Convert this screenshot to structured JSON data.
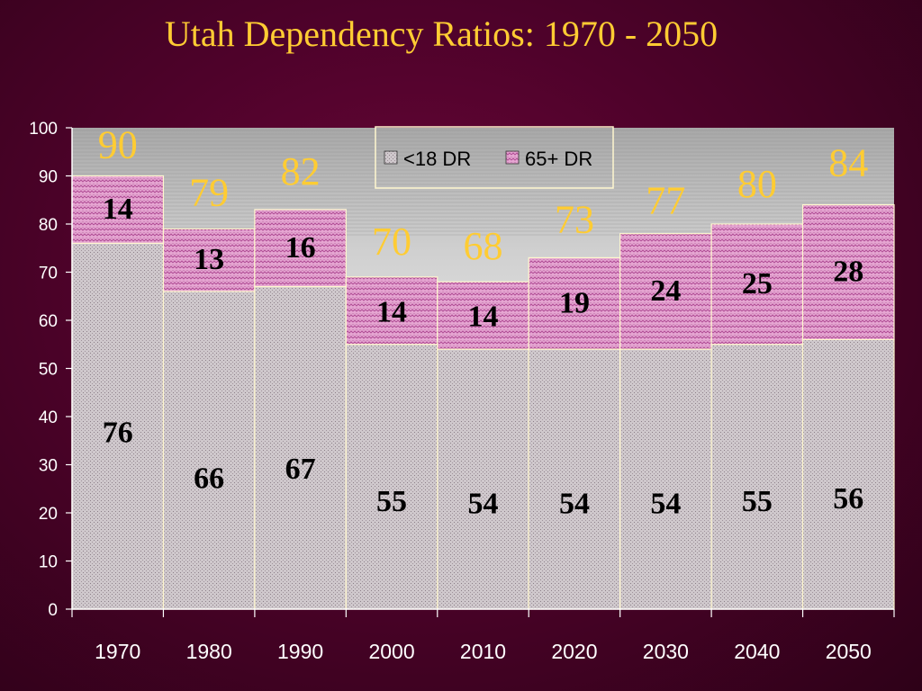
{
  "title": "Utah Dependency Ratios: 1970 - 2050",
  "colors": {
    "under18": "#c9c2c6",
    "over65": "#e3a3cf",
    "total_label": "#ffcc33",
    "background": "#4e022a"
  },
  "chart_data": {
    "type": "bar",
    "stacked": true,
    "categories": [
      "1970",
      "1980",
      "1990",
      "2000",
      "2010",
      "2020",
      "2030",
      "2040",
      "2050"
    ],
    "series": [
      {
        "name": "<18 DR",
        "values": [
          76,
          66,
          67,
          55,
          54,
          54,
          54,
          55,
          56
        ]
      },
      {
        "name": "65+ DR",
        "values": [
          14,
          13,
          16,
          14,
          14,
          19,
          24,
          25,
          28
        ]
      }
    ],
    "series_labels": [
      [
        "76",
        "66",
        "67",
        "55",
        "54",
        "54",
        "54",
        "55",
        "56"
      ],
      [
        "14",
        "13",
        "16",
        "14",
        "14",
        "19",
        "24",
        "25",
        "28"
      ]
    ],
    "totals": [
      "90",
      "79",
      "82",
      "70",
      "68",
      "73",
      "77",
      "80",
      "84"
    ],
    "yticks": [
      "0",
      "10",
      "20",
      "30",
      "40",
      "50",
      "60",
      "70",
      "80",
      "90",
      "100"
    ],
    "ylim": [
      0,
      100
    ],
    "legend": {
      "position": "top-center"
    },
    "grid": false
  }
}
